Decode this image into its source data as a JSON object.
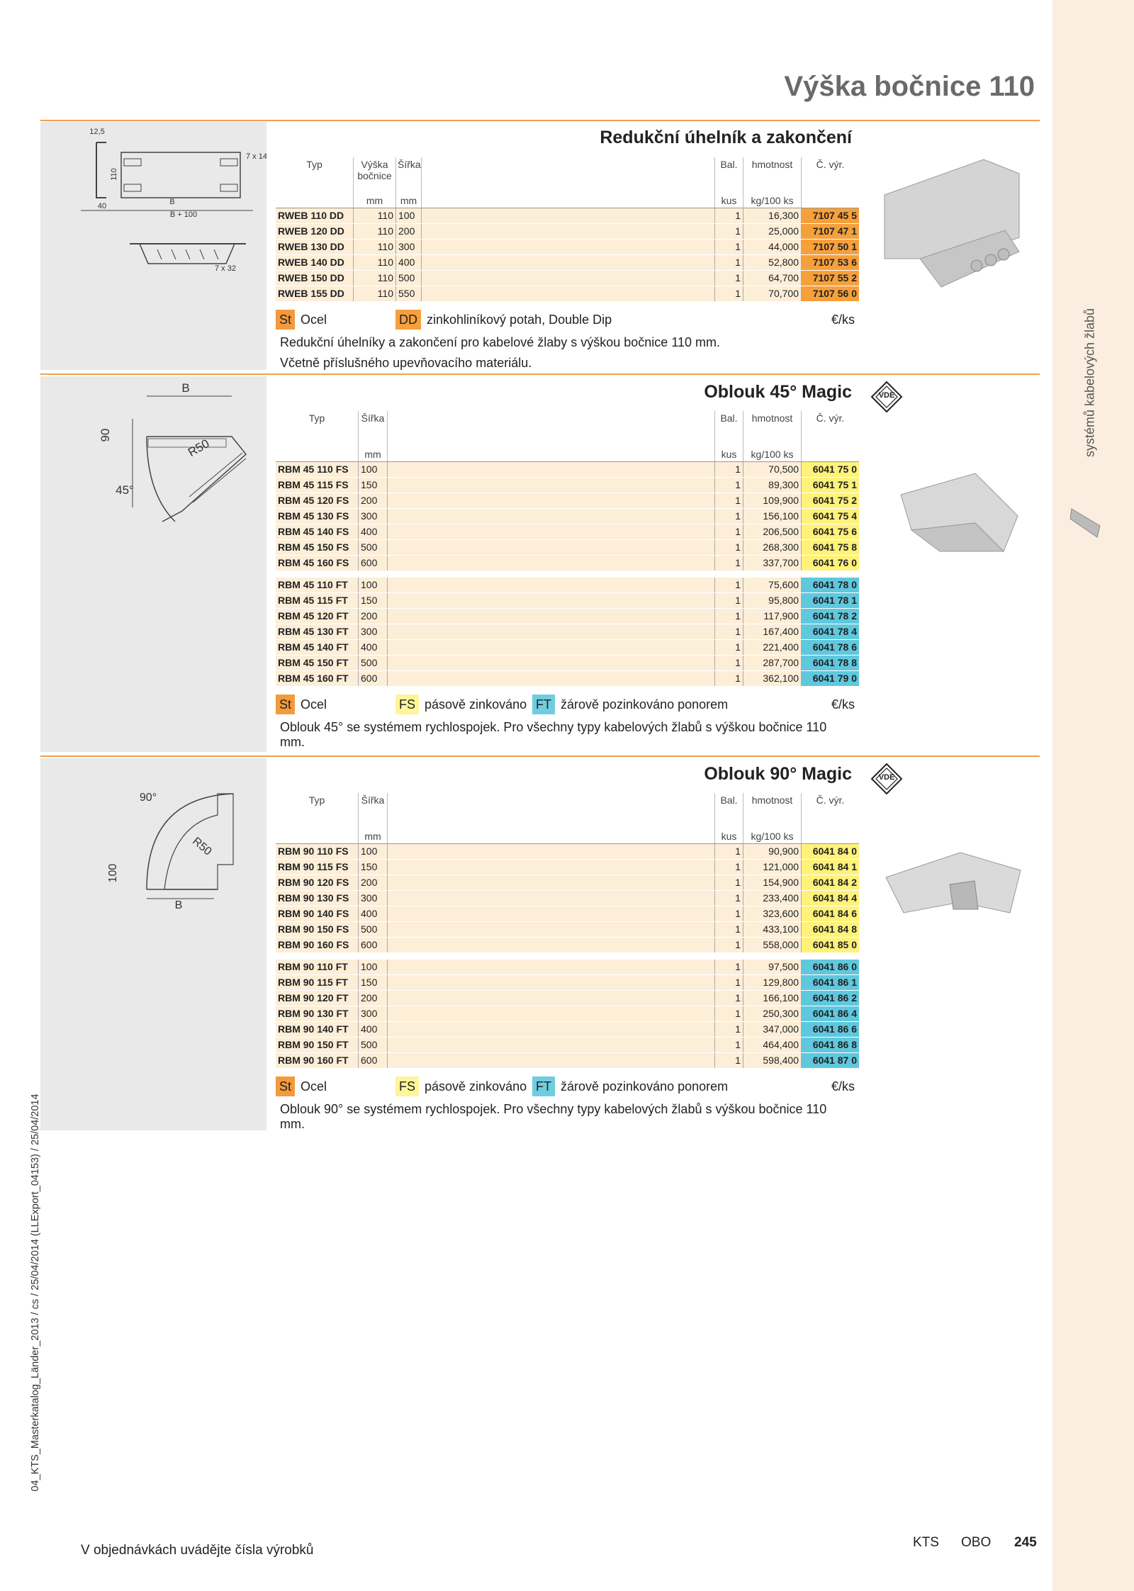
{
  "header": {
    "title": "Výška bočnice 110",
    "side_label": "systémů kabelových žlabů",
    "doc_id": "04_KTS_Masterkatalog_Länder_2013 / cs / 25/04/2014 (LLExport_04153) / 25/04/2014"
  },
  "footer": {
    "note": "V objednávkách uvádějte čísla výrobků",
    "brand": "KTS",
    "company": "OBO",
    "page_number": "245"
  },
  "sections": [
    {
      "title": "Redukční úhelník a zakončení",
      "drawing_labels": [
        "12,5",
        "110",
        "7 x 14",
        "40",
        "B",
        "B + 100",
        "7 x 32"
      ],
      "columns": [
        {
          "label": "Typ"
        },
        {
          "label": "Výška bočnice",
          "unit": "mm"
        },
        {
          "label": "Šířka",
          "unit": "mm"
        },
        {
          "label": "Bal.",
          "unit": "kus"
        },
        {
          "label": "hmotnost",
          "unit": "kg/100 ks"
        },
        {
          "label": "Č. výr."
        }
      ],
      "groups": [
        {
          "color": "#f6a03c",
          "rows": [
            [
              "RWEB 110 DD",
              "110",
              "100",
              "1",
              "16,300",
              "7107 45 5"
            ],
            [
              "RWEB 120 DD",
              "110",
              "200",
              "1",
              "25,000",
              "7107 47 1"
            ],
            [
              "RWEB 130 DD",
              "110",
              "300",
              "1",
              "44,000",
              "7107 50 1"
            ],
            [
              "RWEB 140 DD",
              "110",
              "400",
              "1",
              "52,800",
              "7107 53 6"
            ],
            [
              "RWEB 150 DD",
              "110",
              "500",
              "1",
              "64,700",
              "7107 55 2"
            ],
            [
              "RWEB 155 DD",
              "110",
              "550",
              "1",
              "70,700",
              "7107 56 0"
            ]
          ]
        }
      ],
      "legend": [
        {
          "code": "St",
          "text": "Ocel",
          "color": "#f39a3d"
        },
        {
          "code": "DD",
          "text": "zinkohliníkový potah, Double Dip",
          "color": "#f6a03c"
        }
      ],
      "price_unit": "€/ks",
      "description": [
        "Redukční úhelníky a zakončení pro kabelové žlaby s výškou bočnice 110 mm.",
        "Včetně příslušného upevňovacího materiálu."
      ]
    },
    {
      "title": "Oblouk 45° Magic",
      "badge": "VDE",
      "drawing_labels": [
        "B",
        "90",
        "R50",
        "45°"
      ],
      "columns": [
        {
          "label": "Typ"
        },
        {
          "label": "Šířka",
          "unit": "mm"
        },
        {
          "label": "Bal.",
          "unit": "kus"
        },
        {
          "label": "hmotnost",
          "unit": "kg/100 ks"
        },
        {
          "label": "Č. výr."
        }
      ],
      "groups": [
        {
          "color": "#fff27a",
          "rows": [
            [
              "RBM 45 110 FS",
              "100",
              "1",
              "70,500",
              "6041 75 0"
            ],
            [
              "RBM 45 115 FS",
              "150",
              "1",
              "89,300",
              "6041 75 1"
            ],
            [
              "RBM 45 120 FS",
              "200",
              "1",
              "109,900",
              "6041 75 2"
            ],
            [
              "RBM 45 130 FS",
              "300",
              "1",
              "156,100",
              "6041 75 4"
            ],
            [
              "RBM 45 140 FS",
              "400",
              "1",
              "206,500",
              "6041 75 6"
            ],
            [
              "RBM 45 150 FS",
              "500",
              "1",
              "268,300",
              "6041 75 8"
            ],
            [
              "RBM 45 160 FS",
              "600",
              "1",
              "337,700",
              "6041 76 0"
            ]
          ]
        },
        {
          "color": "#5fc8de",
          "rows": [
            [
              "RBM 45 110 FT",
              "100",
              "1",
              "75,600",
              "6041 78 0"
            ],
            [
              "RBM 45 115 FT",
              "150",
              "1",
              "95,800",
              "6041 78 1"
            ],
            [
              "RBM 45 120 FT",
              "200",
              "1",
              "117,900",
              "6041 78 2"
            ],
            [
              "RBM 45 130 FT",
              "300",
              "1",
              "167,400",
              "6041 78 4"
            ],
            [
              "RBM 45 140 FT",
              "400",
              "1",
              "221,400",
              "6041 78 6"
            ],
            [
              "RBM 45 150 FT",
              "500",
              "1",
              "287,700",
              "6041 78 8"
            ],
            [
              "RBM 45 160 FT",
              "600",
              "1",
              "362,100",
              "6041 79 0"
            ]
          ]
        }
      ],
      "legend": [
        {
          "code": "St",
          "text": "Ocel",
          "color": "#f39a3d"
        },
        {
          "code": "FS",
          "text": "pásově zinkováno",
          "color": "#fff59a"
        },
        {
          "code": "FT",
          "text": "žárově pozinkováno ponorem",
          "color": "#6fcde0"
        }
      ],
      "price_unit": "€/ks",
      "description": [
        "Oblouk 45° se systémem rychlospojek. Pro všechny typy kabelových žlabů s výškou bočnice 110 mm."
      ]
    },
    {
      "title": "Oblouk 90° Magic",
      "badge": "VDE",
      "drawing_labels": [
        "90°",
        "R50",
        "100",
        "B"
      ],
      "columns": [
        {
          "label": "Typ"
        },
        {
          "label": "Šířka",
          "unit": "mm"
        },
        {
          "label": "Bal.",
          "unit": "kus"
        },
        {
          "label": "hmotnost",
          "unit": "kg/100 ks"
        },
        {
          "label": "Č. výr."
        }
      ],
      "groups": [
        {
          "color": "#fff27a",
          "rows": [
            [
              "RBM 90 110 FS",
              "100",
              "1",
              "90,900",
              "6041 84 0"
            ],
            [
              "RBM 90 115 FS",
              "150",
              "1",
              "121,000",
              "6041 84 1"
            ],
            [
              "RBM 90 120 FS",
              "200",
              "1",
              "154,900",
              "6041 84 2"
            ],
            [
              "RBM 90 130 FS",
              "300",
              "1",
              "233,400",
              "6041 84 4"
            ],
            [
              "RBM 90 140 FS",
              "400",
              "1",
              "323,600",
              "6041 84 6"
            ],
            [
              "RBM 90 150 FS",
              "500",
              "1",
              "433,100",
              "6041 84 8"
            ],
            [
              "RBM 90 160 FS",
              "600",
              "1",
              "558,000",
              "6041 85 0"
            ]
          ]
        },
        {
          "color": "#5fc8de",
          "rows": [
            [
              "RBM 90 110 FT",
              "100",
              "1",
              "97,500",
              "6041 86 0"
            ],
            [
              "RBM 90 115 FT",
              "150",
              "1",
              "129,800",
              "6041 86 1"
            ],
            [
              "RBM 90 120 FT",
              "200",
              "1",
              "166,100",
              "6041 86 2"
            ],
            [
              "RBM 90 130 FT",
              "300",
              "1",
              "250,300",
              "6041 86 4"
            ],
            [
              "RBM 90 140 FT",
              "400",
              "1",
              "347,000",
              "6041 86 6"
            ],
            [
              "RBM 90 150 FT",
              "500",
              "1",
              "464,400",
              "6041 86 8"
            ],
            [
              "RBM 90 160 FT",
              "600",
              "1",
              "598,400",
              "6041 87 0"
            ]
          ]
        }
      ],
      "legend": [
        {
          "code": "St",
          "text": "Ocel",
          "color": "#f39a3d"
        },
        {
          "code": "FS",
          "text": "pásově zinkováno",
          "color": "#fff59a"
        },
        {
          "code": "FT",
          "text": "žárově pozinkováno ponorem",
          "color": "#6fcde0"
        }
      ],
      "price_unit": "€/ks",
      "description": [
        "Oblouk 90° se systémem rychlospojek. Pro všechny typy kabelových žlabů s výškou bočnice 110 mm."
      ]
    }
  ]
}
